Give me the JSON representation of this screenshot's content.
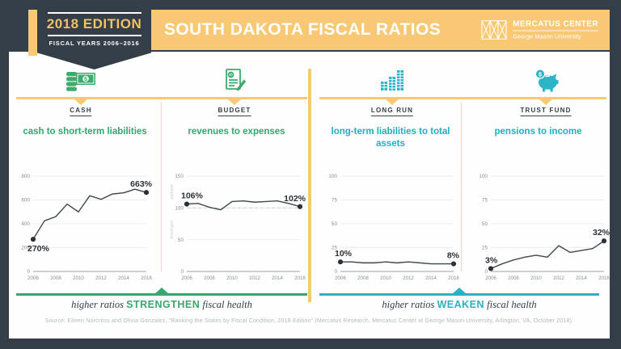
{
  "colors": {
    "navy": "#333e48",
    "gold": "#f8c875",
    "green": "#3aa76d",
    "teal": "#28b2c3",
    "chart_line": "#40474d",
    "tick_gray": "#8a9097"
  },
  "header": {
    "badge": {
      "title": "2018 EDITION",
      "subtitle": "FISCAL YEARS 2006–2016"
    },
    "title": "SOUTH DAKOTA FISCAL RATIOS",
    "logo": {
      "line1": "MERCATUS CENTER",
      "line2": "George Mason University"
    }
  },
  "categories": [
    {
      "label": "CASH",
      "icon": "cash-icon",
      "accent": "green"
    },
    {
      "label": "BUDGET",
      "icon": "budget-document-icon",
      "accent": "green"
    },
    {
      "label": "LONG RUN",
      "icon": "bar-chart-icon",
      "accent": "teal"
    },
    {
      "label": "TRUST FUND",
      "icon": "piggy-bank-icon",
      "accent": "teal"
    }
  ],
  "chart_data": [
    {
      "type": "line",
      "title": "cash to short-term liabilities",
      "x": [
        2006,
        2007,
        2008,
        2009,
        2010,
        2011,
        2012,
        2013,
        2014,
        2015,
        2016
      ],
      "values": [
        270,
        425,
        460,
        565,
        500,
        635,
        605,
        650,
        660,
        690,
        663
      ],
      "ylim": [
        0,
        800
      ],
      "yticks": [
        0,
        200,
        400,
        600,
        800
      ],
      "xticks": [
        2006,
        2008,
        2010,
        2012,
        2014,
        2016
      ],
      "grid": true,
      "annotations": {
        "start": "270%",
        "start_pos": "below",
        "end": "663%",
        "end_pos": "above"
      },
      "accent": "green"
    },
    {
      "type": "line",
      "title": "revenues to expenses",
      "x": [
        2006,
        2007,
        2008,
        2009,
        2010,
        2011,
        2012,
        2013,
        2014,
        2015,
        2016
      ],
      "values": [
        106,
        107,
        101,
        97,
        110,
        111,
        109,
        110,
        111,
        107,
        102
      ],
      "ylim": [
        0,
        150
      ],
      "yticks": [
        0,
        50,
        100,
        150
      ],
      "xticks": [
        2006,
        2008,
        2010,
        2012,
        2014,
        2016
      ],
      "grid": true,
      "dashed_at": 100,
      "side_labels": {
        "above": "solvent",
        "below": "insolvent"
      },
      "annotations": {
        "start": "106%",
        "start_pos": "above",
        "end": "102%",
        "end_pos": "above"
      },
      "accent": "green"
    },
    {
      "type": "line",
      "title": "long-term liabilities to total assets",
      "x": [
        2006,
        2007,
        2008,
        2009,
        2010,
        2011,
        2012,
        2013,
        2014,
        2015,
        2016
      ],
      "values": [
        10,
        10,
        9,
        9,
        10,
        9,
        10,
        9,
        8,
        8,
        8
      ],
      "ylim": [
        0,
        100
      ],
      "yticks": [
        0,
        25,
        50,
        75,
        100
      ],
      "xticks": [
        2006,
        2008,
        2010,
        2012,
        2014,
        2016
      ],
      "grid": true,
      "annotations": {
        "start": "10%",
        "start_pos": "above",
        "end": "8%",
        "end_pos": "above"
      },
      "accent": "teal"
    },
    {
      "type": "line",
      "title": "pensions to income",
      "x": [
        2006,
        2007,
        2008,
        2009,
        2010,
        2011,
        2012,
        2013,
        2014,
        2015,
        2016
      ],
      "values": [
        3,
        8,
        12,
        15,
        17,
        15,
        27,
        20,
        22,
        24,
        32
      ],
      "ylim": [
        0,
        100
      ],
      "yticks": [
        0,
        25,
        50,
        75,
        100
      ],
      "xticks": [
        2006,
        2008,
        2010,
        2012,
        2014,
        2016
      ],
      "grid": true,
      "annotations": {
        "start": "3%",
        "start_pos": "above",
        "end": "32%",
        "end_pos": "above"
      },
      "accent": "teal"
    }
  ],
  "footer": {
    "left": {
      "pre": "higher ratios ",
      "keyword": "STRENGTHEN",
      "post": " fiscal health"
    },
    "right": {
      "pre": "higher ratios ",
      "keyword": "WEAKEN",
      "post": " fiscal health"
    }
  },
  "source": "Source: Eileen Norcross and Olivia Gonzalez, “Ranking the States by Fiscal Condition, 2018 Edition” (Mercatus Research, Mercatus Center at George Mason University, Arlington, VA, October 2018)."
}
